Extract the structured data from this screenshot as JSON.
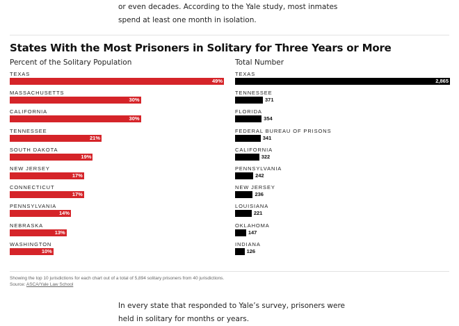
{
  "article": {
    "intro": "or even decades. According to the Yale study, most inmates spend at least one month in isolation.",
    "outro": "In every state that responded to Yale’s survey, prisoners were held in solitary for months or years."
  },
  "colors": {
    "percent_bar": "#d52429",
    "total_bar": "#000000"
  },
  "chart_data": [
    {
      "type": "bar",
      "orientation": "horizontal",
      "title": "States With the Most Prisoners in Solitary for Three Years or More",
      "subtitle": "Percent of the Solitary Population",
      "categories": [
        "TEXAS",
        "MASSACHUSETTS",
        "CALIFORNIA",
        "TENNESSEE",
        "SOUTH DAKOTA",
        "NEW JERSEY",
        "CONNECTICUT",
        "PENNSYLVANIA",
        "NEBRASKA",
        "WASHINGTON"
      ],
      "values": [
        49,
        30,
        30,
        21,
        19,
        17,
        17,
        14,
        13,
        10
      ],
      "labels": [
        "49%",
        "30%",
        "30%",
        "21%",
        "19%",
        "17%",
        "17%",
        "14%",
        "13%",
        "10%"
      ],
      "xlim": [
        0,
        49
      ]
    },
    {
      "type": "bar",
      "orientation": "horizontal",
      "subtitle": "Total Number",
      "categories": [
        "TEXAS",
        "TENNESSEE",
        "FLORIDA",
        "FEDERAL BUREAU OF PRISONS",
        "CALIFORNIA",
        "PENNSYLVANIA",
        "NEW JERSEY",
        "LOUISIANA",
        "OKLAHOMA",
        "INDIANA"
      ],
      "values": [
        2865,
        371,
        354,
        341,
        322,
        242,
        236,
        221,
        147,
        126
      ],
      "labels": [
        "2,865",
        "371",
        "354",
        "341",
        "322",
        "242",
        "236",
        "221",
        "147",
        "126"
      ],
      "xlim": [
        0,
        2865
      ]
    }
  ],
  "footer": {
    "note": "Showing the top 10 jurisdictions for each chart out of a total of 5,894 solitary prisoners from 40 jurisdictions.",
    "source_prefix": "Source: ",
    "source_link": "ASCA/Yale Law School"
  }
}
